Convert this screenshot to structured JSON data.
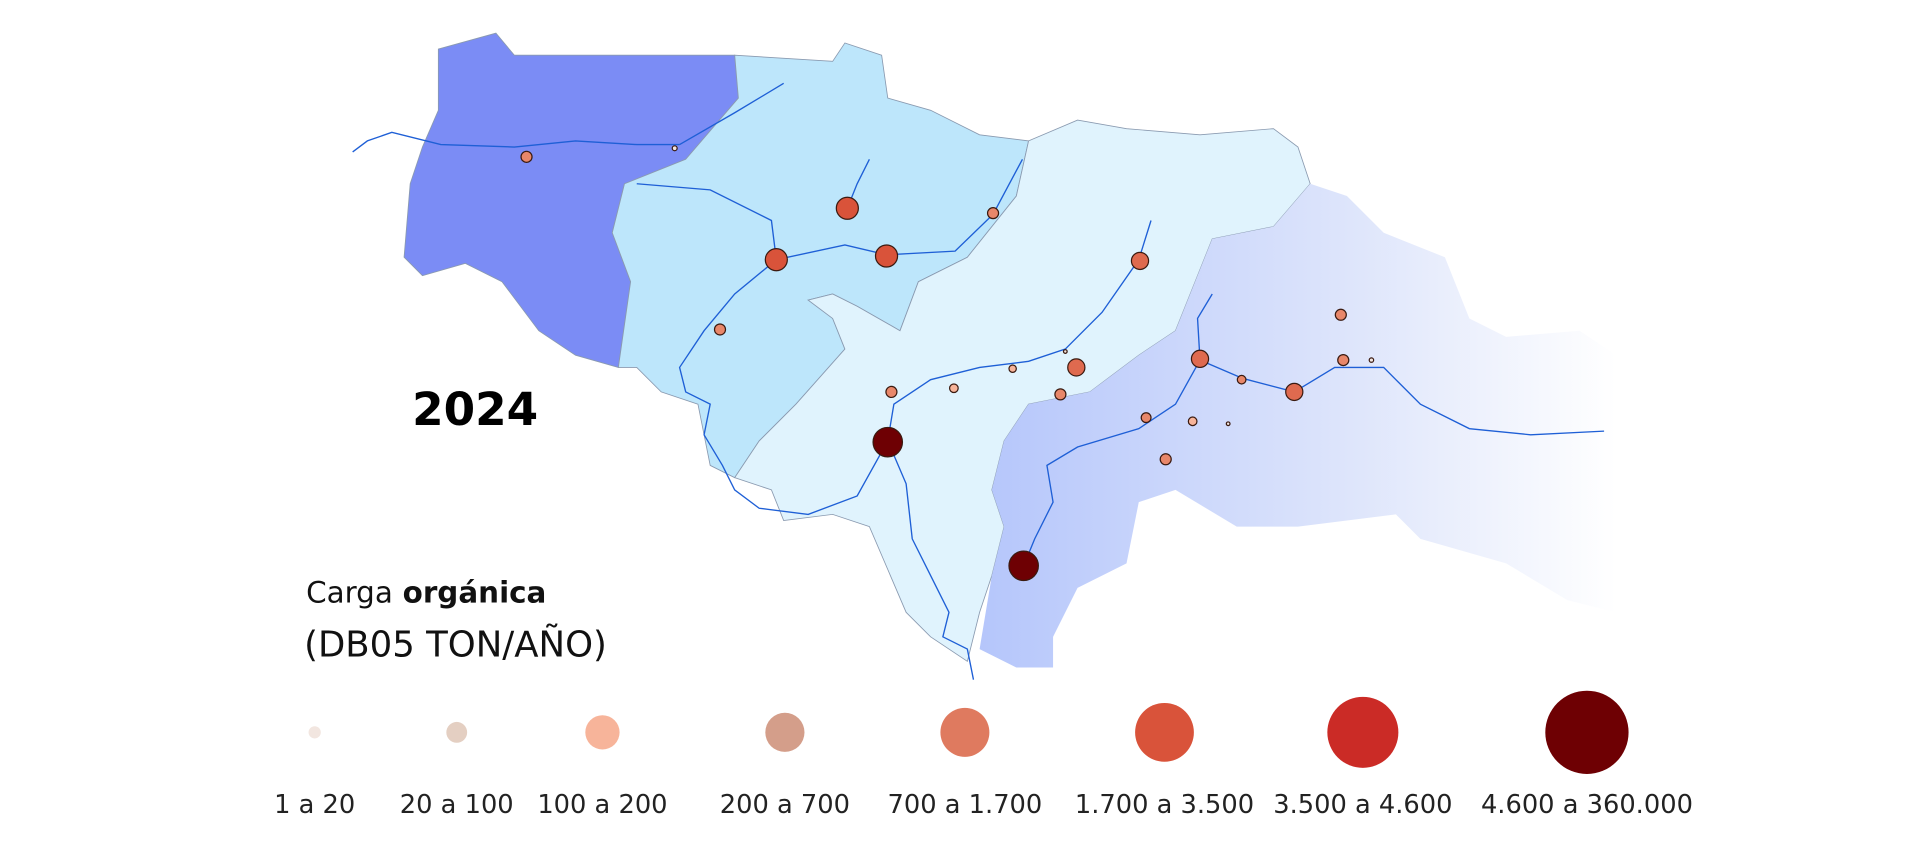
{
  "map": {
    "year": "2024"
  },
  "legend": {
    "title_regular": "Carga",
    "title_bold": "orgánica",
    "subtitle": "(DB05 TON/AÑO)",
    "classes": [
      {
        "label": "1 a 20",
        "color": "#f2e6e0"
      },
      {
        "label": "20 a 100",
        "color": "#e4cfc2"
      },
      {
        "label": "100 a 200",
        "color": "#f7b49a"
      },
      {
        "label": "200 a 700",
        "color": "#d49e8a"
      },
      {
        "label": "700 a 1.700",
        "color": "#df7a5f"
      },
      {
        "label": "1.700 a 3.500",
        "color": "#d9533a"
      },
      {
        "label": "3.500 a 4.600",
        "color": "#cb2b26"
      },
      {
        "label": "4.600 a 360.000",
        "color": "#6e0003"
      }
    ]
  }
}
